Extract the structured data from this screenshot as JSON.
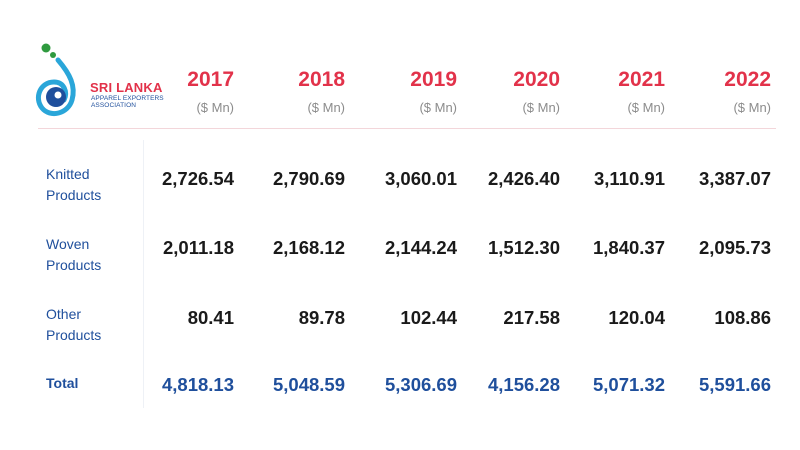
{
  "logo": {
    "name_first": "SRI LANKA",
    "name_second": "",
    "subtitle_lines": [
      "APPAREL EXPORTERS",
      "ASSOCIATION"
    ]
  },
  "colors": {
    "year_header": "#e2324a",
    "row_label": "#1f4f9c",
    "total_value": "#1f4f9c",
    "value": "#1a1a1a",
    "unit": "#8c8c8c"
  },
  "chart_data": {
    "type": "table",
    "columns": [
      {
        "year": "2017",
        "unit": "($ Mn)"
      },
      {
        "year": "2018",
        "unit": "($ Mn)"
      },
      {
        "year": "2019",
        "unit": "($ Mn)"
      },
      {
        "year": "2020",
        "unit": "($ Mn)"
      },
      {
        "year": "2021",
        "unit": "($ Mn)"
      },
      {
        "year": "2022",
        "unit": "($ Mn)"
      }
    ],
    "rows": [
      {
        "label_lines": [
          "Knitted",
          "Products"
        ],
        "values": [
          "2,726.54",
          "2,790.69",
          "3,060.01",
          "2,426.40",
          "3,110.91",
          "3,387.07"
        ]
      },
      {
        "label_lines": [
          "Woven",
          "Products"
        ],
        "values": [
          "2,011.18",
          "2,168.12",
          "2,144.24",
          "1,512.30",
          "1,840.37",
          "2,095.73"
        ]
      },
      {
        "label_lines": [
          "Other",
          "Products"
        ],
        "values": [
          "80.41",
          "89.78",
          "102.44",
          "217.58",
          "120.04",
          "108.86"
        ]
      },
      {
        "label_lines": [
          "Total"
        ],
        "values": [
          "4,818.13",
          "5,048.59",
          "5,306.69",
          "4,156.28",
          "5,071.32",
          "5,591.66"
        ]
      }
    ]
  }
}
